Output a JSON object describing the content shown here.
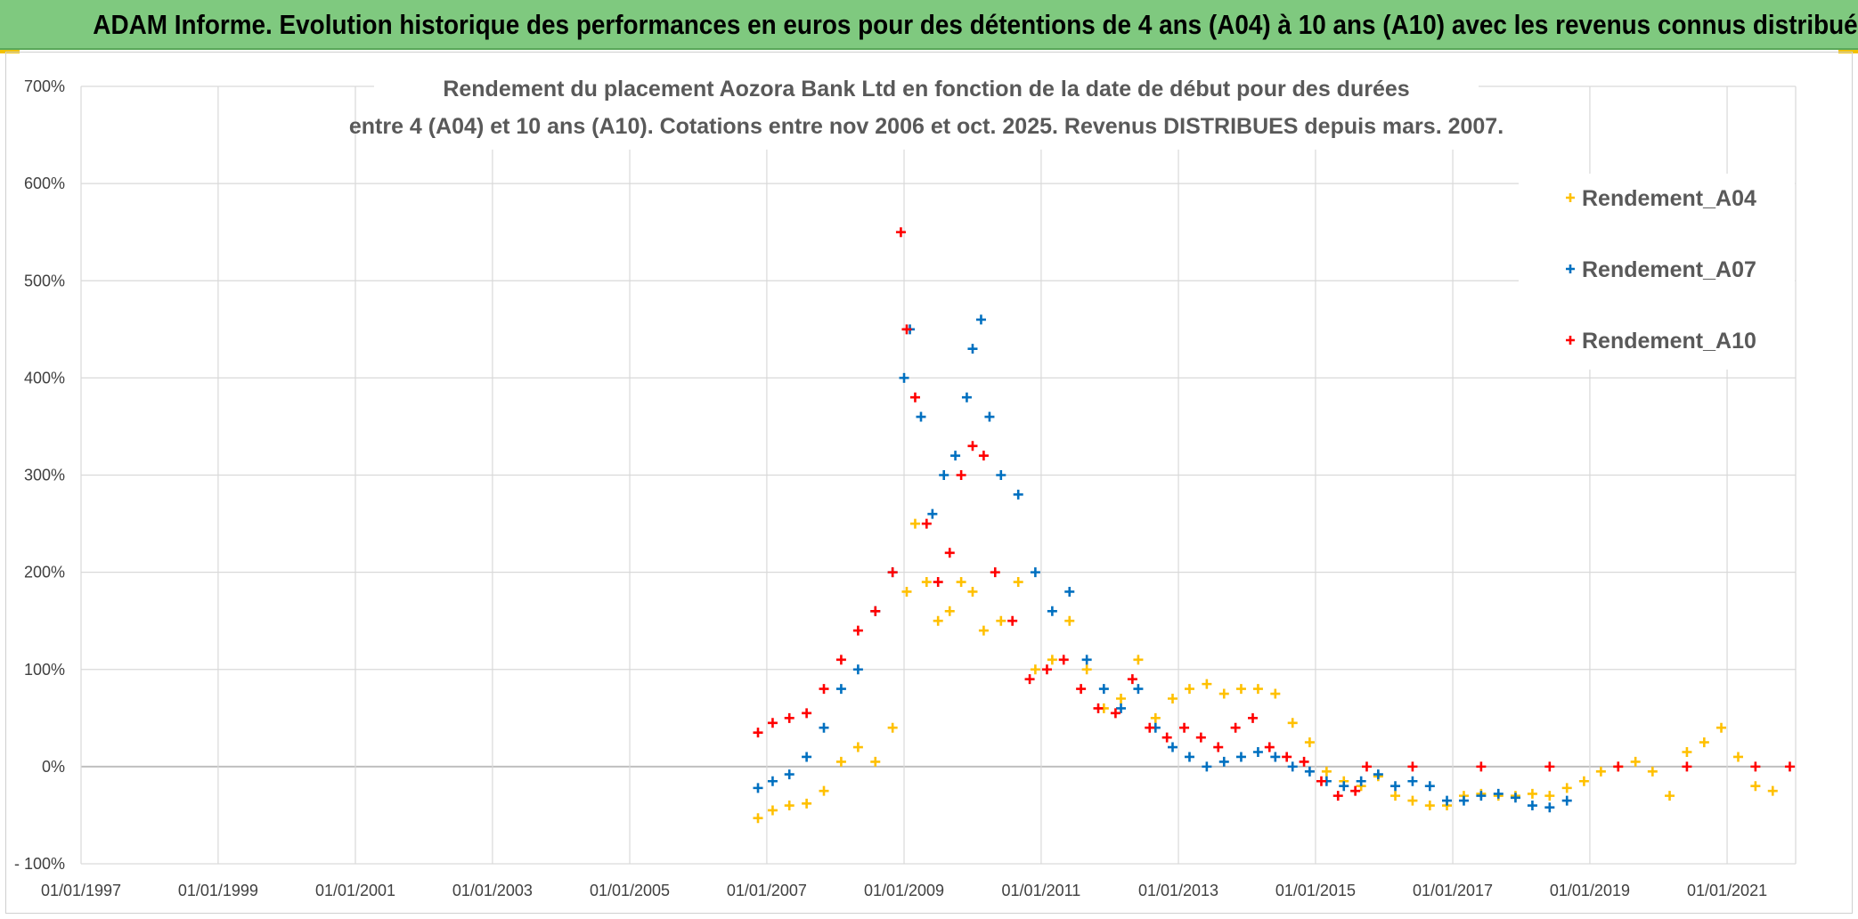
{
  "header": {
    "title": "ADAM Informe. Evolution historique des performances en euros pour des détentions de 4 ans (A04) à 10 ans (A10) avec les revenus connus distribués"
  },
  "chart_data": {
    "type": "scatter",
    "title_lines": [
      "Rendement du placement Aozora Bank Ltd en fonction de la date de début pour des durées",
      "entre 4 (A04) et 10 ans (A10). Cotations entre nov 2006 et oct. 2025. Revenus DISTRIBUES depuis mars. 2007."
    ],
    "x_ticks": [
      "01/01/1997",
      "01/01/1999",
      "01/01/2001",
      "01/01/2003",
      "01/01/2005",
      "01/01/2007",
      "01/01/2009",
      "01/01/2011",
      "01/01/2013",
      "01/01/2015",
      "01/01/2017",
      "01/01/2019",
      "01/01/2021"
    ],
    "xlim": [
      "1997-01-01",
      "2022-01-01"
    ],
    "y_ticks": [
      "700%",
      "600%",
      "500%",
      "400%",
      "300%",
      "200%",
      "100%",
      "0%",
      "- 100%"
    ],
    "ylim": [
      -100,
      700
    ],
    "grid": true,
    "legend_position": "top-right",
    "series": [
      {
        "name": "Rendement_A04",
        "color": "#ffc000",
        "points": [
          [
            "2006-11-15",
            -53
          ],
          [
            "2007-02-01",
            -45
          ],
          [
            "2007-05-01",
            -40
          ],
          [
            "2007-08-01",
            -38
          ],
          [
            "2007-11-01",
            -25
          ],
          [
            "2008-02-01",
            5
          ],
          [
            "2008-05-01",
            20
          ],
          [
            "2008-08-01",
            5
          ],
          [
            "2008-11-01",
            40
          ],
          [
            "2009-01-15",
            180
          ],
          [
            "2009-03-01",
            250
          ],
          [
            "2009-05-01",
            190
          ],
          [
            "2009-07-01",
            150
          ],
          [
            "2009-09-01",
            160
          ],
          [
            "2009-11-01",
            190
          ],
          [
            "2010-01-01",
            180
          ],
          [
            "2010-03-01",
            140
          ],
          [
            "2010-06-01",
            150
          ],
          [
            "2010-09-01",
            190
          ],
          [
            "2010-12-01",
            100
          ],
          [
            "2011-03-01",
            110
          ],
          [
            "2011-06-01",
            150
          ],
          [
            "2011-09-01",
            100
          ],
          [
            "2011-12-01",
            60
          ],
          [
            "2012-03-01",
            70
          ],
          [
            "2012-06-01",
            110
          ],
          [
            "2012-09-01",
            50
          ],
          [
            "2012-12-01",
            70
          ],
          [
            "2013-03-01",
            80
          ],
          [
            "2013-06-01",
            85
          ],
          [
            "2013-09-01",
            75
          ],
          [
            "2013-12-01",
            80
          ],
          [
            "2014-03-01",
            80
          ],
          [
            "2014-06-01",
            75
          ],
          [
            "2014-09-01",
            45
          ],
          [
            "2014-12-01",
            25
          ],
          [
            "2015-03-01",
            -5
          ],
          [
            "2015-06-01",
            -15
          ],
          [
            "2015-09-01",
            -20
          ],
          [
            "2015-12-01",
            -10
          ],
          [
            "2016-03-01",
            -30
          ],
          [
            "2016-06-01",
            -35
          ],
          [
            "2016-09-01",
            -40
          ],
          [
            "2016-12-01",
            -40
          ],
          [
            "2017-03-01",
            -30
          ],
          [
            "2017-06-01",
            -28
          ],
          [
            "2017-09-01",
            -30
          ],
          [
            "2017-12-01",
            -30
          ],
          [
            "2018-03-01",
            -28
          ],
          [
            "2018-06-01",
            -30
          ],
          [
            "2018-09-01",
            -22
          ],
          [
            "2018-12-01",
            -15
          ],
          [
            "2019-03-01",
            -5
          ],
          [
            "2019-06-01",
            0
          ],
          [
            "2019-09-01",
            5
          ],
          [
            "2019-12-01",
            -5
          ],
          [
            "2020-03-01",
            -30
          ],
          [
            "2020-06-01",
            15
          ],
          [
            "2020-09-01",
            25
          ],
          [
            "2020-12-01",
            40
          ],
          [
            "2021-03-01",
            10
          ],
          [
            "2021-06-01",
            -20
          ],
          [
            "2021-09-01",
            -25
          ]
        ]
      },
      {
        "name": "Rendement_A07",
        "color": "#0070c0",
        "points": [
          [
            "2006-11-15",
            -22
          ],
          [
            "2007-02-01",
            -15
          ],
          [
            "2007-05-01",
            -8
          ],
          [
            "2007-08-01",
            10
          ],
          [
            "2007-11-01",
            40
          ],
          [
            "2008-02-01",
            80
          ],
          [
            "2008-05-01",
            100
          ],
          [
            "2008-08-01",
            160
          ],
          [
            "2008-11-01",
            200
          ],
          [
            "2009-01-01",
            400
          ],
          [
            "2009-02-01",
            450
          ],
          [
            "2009-04-01",
            360
          ],
          [
            "2009-06-01",
            260
          ],
          [
            "2009-08-01",
            300
          ],
          [
            "2009-10-01",
            320
          ],
          [
            "2009-12-01",
            380
          ],
          [
            "2010-01-01",
            430
          ],
          [
            "2010-02-15",
            460
          ],
          [
            "2010-04-01",
            360
          ],
          [
            "2010-06-01",
            300
          ],
          [
            "2010-09-01",
            280
          ],
          [
            "2010-12-01",
            200
          ],
          [
            "2011-03-01",
            160
          ],
          [
            "2011-06-01",
            180
          ],
          [
            "2011-09-01",
            110
          ],
          [
            "2011-12-01",
            80
          ],
          [
            "2012-03-01",
            60
          ],
          [
            "2012-06-01",
            80
          ],
          [
            "2012-09-01",
            40
          ],
          [
            "2012-12-01",
            20
          ],
          [
            "2013-03-01",
            10
          ],
          [
            "2013-06-01",
            0
          ],
          [
            "2013-09-01",
            5
          ],
          [
            "2013-12-01",
            10
          ],
          [
            "2014-03-01",
            15
          ],
          [
            "2014-06-01",
            10
          ],
          [
            "2014-09-01",
            0
          ],
          [
            "2014-12-01",
            -5
          ],
          [
            "2015-03-01",
            -15
          ],
          [
            "2015-06-01",
            -20
          ],
          [
            "2015-09-01",
            -15
          ],
          [
            "2015-12-01",
            -8
          ],
          [
            "2016-03-01",
            -20
          ],
          [
            "2016-06-01",
            -15
          ],
          [
            "2016-09-01",
            -20
          ],
          [
            "2016-12-01",
            -35
          ],
          [
            "2017-03-01",
            -35
          ],
          [
            "2017-06-01",
            -30
          ],
          [
            "2017-09-01",
            -28
          ],
          [
            "2017-12-01",
            -32
          ],
          [
            "2018-03-01",
            -40
          ],
          [
            "2018-06-01",
            -42
          ],
          [
            "2018-09-01",
            -35
          ]
        ]
      },
      {
        "name": "Rendement_A10",
        "color": "#ff0000",
        "points": [
          [
            "2006-11-15",
            35
          ],
          [
            "2007-02-01",
            45
          ],
          [
            "2007-05-01",
            50
          ],
          [
            "2007-08-01",
            55
          ],
          [
            "2007-11-01",
            80
          ],
          [
            "2008-02-01",
            110
          ],
          [
            "2008-05-01",
            140
          ],
          [
            "2008-08-01",
            160
          ],
          [
            "2008-11-01",
            200
          ],
          [
            "2008-12-15",
            550
          ],
          [
            "2009-01-15",
            450
          ],
          [
            "2009-03-01",
            380
          ],
          [
            "2009-05-01",
            250
          ],
          [
            "2009-07-01",
            190
          ],
          [
            "2009-09-01",
            220
          ],
          [
            "2009-11-01",
            300
          ],
          [
            "2010-01-01",
            330
          ],
          [
            "2010-03-01",
            320
          ],
          [
            "2010-05-01",
            200
          ],
          [
            "2010-08-01",
            150
          ],
          [
            "2010-11-01",
            90
          ],
          [
            "2011-02-01",
            100
          ],
          [
            "2011-05-01",
            110
          ],
          [
            "2011-08-01",
            80
          ],
          [
            "2011-11-01",
            60
          ],
          [
            "2012-02-01",
            55
          ],
          [
            "2012-05-01",
            90
          ],
          [
            "2012-08-01",
            40
          ],
          [
            "2012-11-01",
            30
          ],
          [
            "2013-02-01",
            40
          ],
          [
            "2013-05-01",
            30
          ],
          [
            "2013-08-01",
            20
          ],
          [
            "2013-11-01",
            40
          ],
          [
            "2014-02-01",
            50
          ],
          [
            "2014-05-01",
            20
          ],
          [
            "2014-08-01",
            10
          ],
          [
            "2014-11-01",
            5
          ],
          [
            "2015-02-01",
            -15
          ],
          [
            "2015-05-01",
            -30
          ],
          [
            "2015-08-01",
            -25
          ],
          [
            "2015-10-01",
            0
          ],
          [
            "2016-06-01",
            0
          ],
          [
            "2017-06-01",
            0
          ],
          [
            "2018-06-01",
            0
          ],
          [
            "2019-06-01",
            0
          ],
          [
            "2020-06-01",
            0
          ],
          [
            "2021-06-01",
            0
          ],
          [
            "2021-12-01",
            0
          ]
        ]
      }
    ]
  }
}
